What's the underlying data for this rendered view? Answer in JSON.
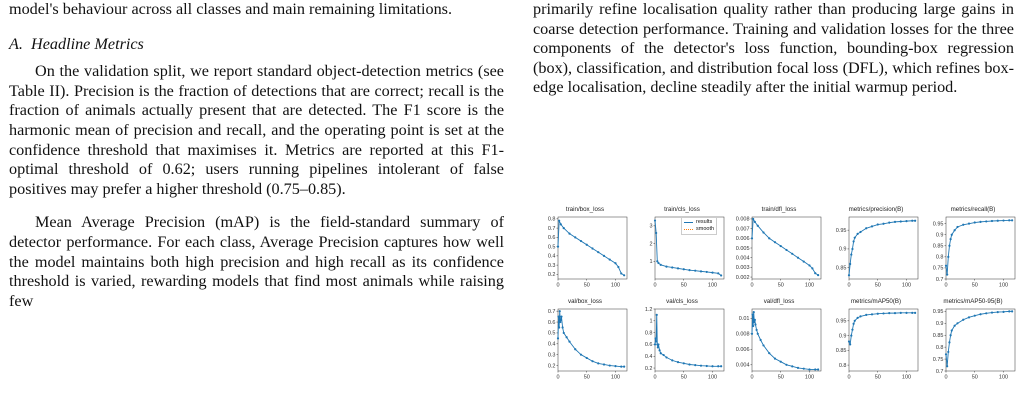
{
  "left": {
    "p0": "model's behaviour across all classes and main remaining limitations.",
    "section": "A. Headline Metrics",
    "p1": "On the validation split, we report standard object-detection metrics (see Table II). Precision is the fraction of detections that are correct; recall is the fraction of animals actually present that are detected. The F1 score is the harmonic mean of precision and recall, and the operating point is set at the confidence threshold that maximises it. Metrics are reported at this F1-optimal threshold of 0.62; users running pipelines intolerant of false positives may prefer a higher threshold (0.75–0.85).",
    "p2": "Mean Average Precision (mAP) is the field-standard summary of detector performance. For each class, Average Precision captures how well the model maintains both high precision and high recall as its confidence threshold is varied, rewarding models that find most animals while raising few"
  },
  "right": {
    "p0": "primarily refine localisation quality rather than producing large gains in coarse detection performance. Training and validation losses for the three components of the detector's loss function, bounding-box regression (box), classification, and distribution focal loss (DFL), which refines box-edge localisation, decline steadily after the initial warmup period."
  },
  "legend": {
    "results": "results",
    "smooth": "smooth"
  },
  "colors": {
    "results": "#1f77b4",
    "smooth": "#ff7f0e"
  },
  "chart_data": [
    {
      "type": "line",
      "title": "train/box_loss",
      "x": [
        0,
        2,
        5,
        10,
        20,
        30,
        40,
        50,
        60,
        70,
        80,
        90,
        100,
        105,
        110,
        115
      ],
      "series": [
        {
          "values": [
            0.5,
            0.78,
            0.74,
            0.7,
            0.64,
            0.6,
            0.56,
            0.52,
            0.48,
            0.44,
            0.4,
            0.36,
            0.32,
            0.28,
            0.21,
            0.19
          ]
        }
      ],
      "xlim": [
        0,
        120
      ],
      "ylim": [
        0.15,
        0.82
      ],
      "xticks": [
        0,
        50,
        100
      ],
      "yticks": [
        0.2,
        0.3,
        0.4,
        0.5,
        0.6,
        0.7,
        0.8
      ]
    },
    {
      "type": "line",
      "title": "train/cls_loss",
      "x": [
        0,
        2,
        4,
        6,
        10,
        20,
        30,
        40,
        50,
        60,
        70,
        80,
        90,
        100,
        110,
        115
      ],
      "series": [
        {
          "values": [
            3.3,
            2.6,
            1.0,
            0.9,
            0.8,
            0.7,
            0.65,
            0.6,
            0.55,
            0.5,
            0.47,
            0.43,
            0.4,
            0.36,
            0.32,
            0.2
          ]
        }
      ],
      "xlim": [
        0,
        120
      ],
      "ylim": [
        0,
        3.5
      ],
      "xticks": [
        0,
        50,
        100
      ],
      "yticks": [
        1,
        2,
        3
      ],
      "legend": true
    },
    {
      "type": "line",
      "title": "train/dfl_loss",
      "x": [
        0,
        2,
        5,
        10,
        20,
        30,
        40,
        50,
        60,
        70,
        80,
        90,
        100,
        105,
        110,
        115
      ],
      "series": [
        {
          "values": [
            0.006,
            0.008,
            0.0077,
            0.0073,
            0.0066,
            0.006,
            0.0056,
            0.0052,
            0.0048,
            0.0044,
            0.004,
            0.0036,
            0.0032,
            0.0029,
            0.0024,
            0.0022
          ]
        }
      ],
      "xlim": [
        0,
        120
      ],
      "ylim": [
        0.0018,
        0.0082
      ],
      "xticks": [
        0,
        50,
        100
      ],
      "yticks": [
        0.002,
        0.003,
        0.004,
        0.005,
        0.006,
        0.007,
        0.008
      ]
    },
    {
      "type": "line",
      "title": "metrics/precision(B)",
      "x": [
        0,
        2,
        4,
        6,
        8,
        10,
        15,
        20,
        30,
        40,
        50,
        60,
        70,
        80,
        90,
        100,
        110,
        115
      ],
      "series": [
        {
          "values": [
            0.83,
            0.86,
            0.885,
            0.9,
            0.92,
            0.93,
            0.94,
            0.945,
            0.955,
            0.96,
            0.965,
            0.967,
            0.97,
            0.972,
            0.973,
            0.974,
            0.975,
            0.975
          ]
        }
      ],
      "xlim": [
        0,
        120
      ],
      "ylim": [
        0.82,
        0.985
      ],
      "xticks": [
        0,
        50,
        100
      ],
      "yticks": [
        0.85,
        0.9,
        0.95
      ]
    },
    {
      "type": "line",
      "title": "metrics/recall(B)",
      "x": [
        0,
        2,
        4,
        6,
        8,
        10,
        15,
        20,
        30,
        40,
        50,
        60,
        70,
        80,
        90,
        100,
        110,
        115
      ],
      "series": [
        {
          "values": [
            0.76,
            0.72,
            0.8,
            0.85,
            0.88,
            0.9,
            0.92,
            0.935,
            0.945,
            0.95,
            0.955,
            0.958,
            0.96,
            0.962,
            0.963,
            0.964,
            0.965,
            0.965
          ]
        }
      ],
      "xlim": [
        0,
        120
      ],
      "ylim": [
        0.7,
        0.98
      ],
      "xticks": [
        0,
        50,
        100
      ],
      "yticks": [
        0.7,
        0.75,
        0.8,
        0.85,
        0.9,
        0.95
      ]
    },
    {
      "type": "line",
      "title": "val/box_loss",
      "x": [
        0,
        1,
        2,
        3,
        4,
        5,
        6,
        8,
        10,
        15,
        20,
        30,
        40,
        50,
        60,
        70,
        80,
        90,
        100,
        110,
        115
      ],
      "series": [
        {
          "values": [
            0.45,
            0.65,
            0.55,
            0.7,
            0.6,
            0.62,
            0.65,
            0.55,
            0.5,
            0.46,
            0.42,
            0.35,
            0.3,
            0.27,
            0.24,
            0.22,
            0.21,
            0.2,
            0.195,
            0.19,
            0.19
          ]
        }
      ],
      "xlim": [
        0,
        120
      ],
      "ylim": [
        0.15,
        0.72
      ],
      "xticks": [
        0,
        50,
        100
      ],
      "yticks": [
        0.2,
        0.3,
        0.4,
        0.5,
        0.6,
        0.7
      ]
    },
    {
      "type": "line",
      "title": "val/cls_loss",
      "x": [
        0,
        1,
        2,
        3,
        4,
        5,
        6,
        8,
        10,
        15,
        20,
        30,
        40,
        50,
        60,
        70,
        80,
        90,
        100,
        110,
        115
      ],
      "series": [
        {
          "values": [
            0.6,
            0.7,
            0.65,
            1.1,
            0.6,
            0.55,
            0.6,
            0.5,
            0.45,
            0.42,
            0.38,
            0.33,
            0.3,
            0.28,
            0.26,
            0.25,
            0.24,
            0.235,
            0.23,
            0.23,
            0.23
          ]
        }
      ],
      "xlim": [
        0,
        120
      ],
      "ylim": [
        0.15,
        1.2
      ],
      "xticks": [
        0,
        50,
        100
      ],
      "yticks": [
        0.2,
        0.4,
        0.6,
        0.8,
        1.0,
        1.2
      ]
    },
    {
      "type": "line",
      "title": "val/dfl_loss",
      "x": [
        0,
        1,
        2,
        3,
        4,
        5,
        6,
        8,
        10,
        15,
        20,
        30,
        40,
        50,
        60,
        70,
        80,
        90,
        100,
        110,
        115
      ],
      "series": [
        {
          "values": [
            0.008,
            0.0105,
            0.009,
            0.0108,
            0.0095,
            0.0098,
            0.0092,
            0.0085,
            0.008,
            0.0072,
            0.0065,
            0.0055,
            0.0048,
            0.0044,
            0.004,
            0.0038,
            0.0036,
            0.0035,
            0.0034,
            0.0034,
            0.0034
          ]
        }
      ],
      "xlim": [
        0,
        120
      ],
      "ylim": [
        0.0032,
        0.0112
      ],
      "xticks": [
        0,
        50,
        100
      ],
      "yticks": [
        0.004,
        0.006,
        0.008,
        0.01
      ]
    },
    {
      "type": "line",
      "title": "metrics/mAP50(B)",
      "x": [
        0,
        2,
        4,
        6,
        8,
        10,
        15,
        20,
        30,
        40,
        50,
        60,
        70,
        80,
        90,
        100,
        110,
        115
      ],
      "series": [
        {
          "values": [
            0.88,
            0.87,
            0.9,
            0.92,
            0.94,
            0.95,
            0.96,
            0.965,
            0.97,
            0.972,
            0.974,
            0.975,
            0.976,
            0.976,
            0.977,
            0.977,
            0.977,
            0.977
          ]
        }
      ],
      "xlim": [
        0,
        120
      ],
      "ylim": [
        0.78,
        0.99
      ],
      "xticks": [
        0,
        50,
        100
      ],
      "yticks": [
        0.8,
        0.85,
        0.9,
        0.95
      ]
    },
    {
      "type": "line",
      "title": "metrics/mAP50-95(B)",
      "x": [
        0,
        2,
        4,
        6,
        8,
        10,
        15,
        20,
        30,
        40,
        50,
        60,
        70,
        80,
        90,
        100,
        110,
        115
      ],
      "series": [
        {
          "values": [
            0.77,
            0.72,
            0.78,
            0.82,
            0.85,
            0.87,
            0.89,
            0.9,
            0.915,
            0.925,
            0.932,
            0.938,
            0.942,
            0.945,
            0.947,
            0.948,
            0.95,
            0.95
          ]
        }
      ],
      "xlim": [
        0,
        120
      ],
      "ylim": [
        0.7,
        0.96
      ],
      "xticks": [
        0,
        50,
        100
      ],
      "yticks": [
        0.7,
        0.75,
        0.8,
        0.85,
        0.9,
        0.95
      ]
    }
  ]
}
